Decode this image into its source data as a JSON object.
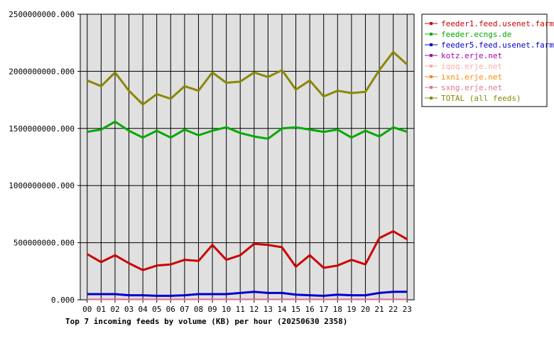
{
  "chart_data": {
    "type": "line",
    "title": "Top 7 incoming feeds by volume (KB) per hour (20250630 2358)",
    "xlabel": "",
    "ylabel": "",
    "categories": [
      "00",
      "01",
      "02",
      "03",
      "04",
      "05",
      "06",
      "07",
      "08",
      "09",
      "10",
      "11",
      "12",
      "13",
      "14",
      "15",
      "16",
      "17",
      "18",
      "19",
      "20",
      "21",
      "22",
      "23"
    ],
    "ylim": [
      0,
      2500000000
    ],
    "yticks": [
      "0.000",
      "500000000.000",
      "1000000000.000",
      "1500000000.000",
      "2000000000.000",
      "2500000000.000"
    ],
    "grid": true,
    "legend_position": "right",
    "series": [
      {
        "name": "feeder1.feed.usenet.farm",
        "color": "#cc0000",
        "values": [
          400000000,
          330000000,
          390000000,
          320000000,
          260000000,
          300000000,
          310000000,
          350000000,
          340000000,
          480000000,
          350000000,
          390000000,
          490000000,
          480000000,
          460000000,
          290000000,
          390000000,
          280000000,
          300000000,
          350000000,
          310000000,
          540000000,
          600000000,
          530000000
        ]
      },
      {
        "name": "feeder.ecngs.de",
        "color": "#00aa00",
        "values": [
          1470000000,
          1490000000,
          1560000000,
          1480000000,
          1420000000,
          1480000000,
          1420000000,
          1490000000,
          1440000000,
          1480000000,
          1510000000,
          1460000000,
          1430000000,
          1410000000,
          1500000000,
          1510000000,
          1490000000,
          1470000000,
          1490000000,
          1420000000,
          1480000000,
          1430000000,
          1510000000,
          1470000000
        ]
      },
      {
        "name": "feeder5.feed.usenet.farm",
        "color": "#0000cc",
        "values": [
          50000000,
          50000000,
          50000000,
          40000000,
          40000000,
          35000000,
          35000000,
          40000000,
          50000000,
          50000000,
          50000000,
          60000000,
          70000000,
          60000000,
          60000000,
          45000000,
          40000000,
          35000000,
          45000000,
          40000000,
          40000000,
          60000000,
          70000000,
          70000000
        ]
      },
      {
        "name": "kotz.erje.net",
        "color": "#aa00aa",
        "values": [
          5000000,
          5000000,
          5000000,
          5000000,
          5000000,
          5000000,
          5000000,
          5000000,
          5000000,
          5000000,
          5000000,
          5000000,
          5000000,
          5000000,
          5000000,
          5000000,
          5000000,
          5000000,
          5000000,
          5000000,
          5000000,
          5000000,
          5000000,
          5000000
        ]
      },
      {
        "name": "iqoq.erje.net",
        "color": "#ffaaaa",
        "values": [
          3000000,
          3000000,
          3000000,
          3000000,
          3000000,
          3000000,
          3000000,
          3000000,
          3000000,
          3000000,
          3000000,
          3000000,
          3000000,
          3000000,
          3000000,
          3000000,
          3000000,
          3000000,
          3000000,
          3000000,
          3000000,
          3000000,
          3000000,
          3000000
        ]
      },
      {
        "name": "ixni.erje.net",
        "color": "#ff8800",
        "values": [
          2000000,
          2000000,
          2000000,
          2000000,
          2000000,
          2000000,
          2000000,
          2000000,
          2000000,
          2000000,
          2000000,
          2000000,
          2000000,
          2000000,
          2000000,
          2000000,
          2000000,
          2000000,
          2000000,
          2000000,
          2000000,
          2000000,
          2000000,
          2000000
        ]
      },
      {
        "name": "sxng.erje.net",
        "color": "#dd7788",
        "values": [
          1000000,
          1000000,
          1000000,
          1000000,
          1000000,
          1000000,
          1000000,
          1000000,
          1000000,
          1000000,
          1000000,
          1000000,
          1000000,
          1000000,
          1000000,
          1000000,
          1000000,
          1000000,
          1000000,
          1000000,
          1000000,
          1000000,
          1000000,
          1000000
        ]
      },
      {
        "name": "TOTAL (all feeds)",
        "color": "#888800",
        "values": [
          1920000000,
          1870000000,
          1990000000,
          1830000000,
          1710000000,
          1800000000,
          1760000000,
          1870000000,
          1830000000,
          1990000000,
          1900000000,
          1910000000,
          1990000000,
          1950000000,
          2010000000,
          1840000000,
          1920000000,
          1780000000,
          1830000000,
          1810000000,
          1820000000,
          2010000000,
          2170000000,
          2060000000
        ]
      }
    ]
  }
}
